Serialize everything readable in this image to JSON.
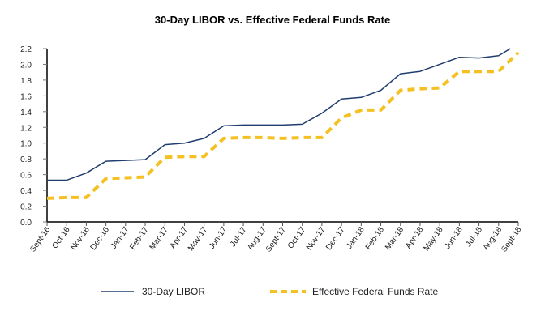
{
  "chart_data": {
    "type": "line",
    "title": "30-Day LIBOR vs. Effective Federal Funds Rate",
    "xlabel": "",
    "ylabel": "",
    "ylim": [
      0,
      2.2
    ],
    "yticks": [
      "0.0",
      "0.2",
      "0.4",
      "0.6",
      "0.8",
      "1.0",
      "1.2",
      "1.4",
      "1.6",
      "1.8",
      "2.0",
      "2.2"
    ],
    "grid": false,
    "legend": "bottom",
    "categories": [
      "Sept-16",
      "Oct-16",
      "Nov-16",
      "Dec-16",
      "Jan-17",
      "Feb-17",
      "Mar-17",
      "Apr-17",
      "May-17",
      "Jun-17",
      "Jul-17",
      "Aug-17",
      "Sept-17",
      "Oct-17",
      "Nov-17",
      "Dec-17",
      "Jan-18",
      "Feb-18",
      "Mar-18",
      "Apr-18",
      "May-18",
      "Jun-18",
      "Jul-18",
      "Aug-18",
      "Sept-18"
    ],
    "series": [
      {
        "name": "30-Day LIBOR",
        "color": "#1f3d6e",
        "style": "solid",
        "values": [
          0.53,
          0.53,
          0.62,
          0.77,
          0.78,
          0.79,
          0.98,
          1.0,
          1.06,
          1.22,
          1.23,
          1.23,
          1.23,
          1.24,
          1.38,
          1.56,
          1.58,
          1.67,
          1.88,
          1.91,
          2.0,
          2.09,
          2.08,
          2.11,
          2.26
        ]
      },
      {
        "name": "Effective Federal Funds Rate",
        "color": "#f5c022",
        "style": "dashed",
        "values": [
          0.3,
          0.31,
          0.31,
          0.55,
          0.56,
          0.57,
          0.82,
          0.83,
          0.83,
          1.06,
          1.07,
          1.07,
          1.06,
          1.07,
          1.07,
          1.32,
          1.42,
          1.42,
          1.67,
          1.69,
          1.7,
          1.91,
          1.91,
          1.91,
          2.15
        ]
      }
    ]
  }
}
